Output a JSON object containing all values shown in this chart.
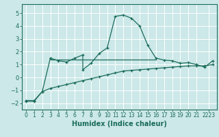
{
  "xlabel": "Humidex (Indice chaleur)",
  "xlim": [
    -0.5,
    23.5
  ],
  "ylim": [
    -2.5,
    5.7
  ],
  "yticks": [
    -2,
    -1,
    0,
    1,
    2,
    3,
    4,
    5
  ],
  "xtick_labels": [
    "0",
    "1",
    "2",
    "3",
    "4",
    "5",
    "6",
    "7",
    "8",
    "9",
    "10",
    "11",
    "12",
    "13",
    "14",
    "15",
    "16",
    "17",
    "18",
    "19",
    "20",
    "21",
    "2223"
  ],
  "xtick_pos": [
    0,
    1,
    2,
    3,
    4,
    5,
    6,
    7,
    8,
    9,
    10,
    11,
    12,
    13,
    14,
    15,
    16,
    17,
    18,
    19,
    20,
    21,
    22.5
  ],
  "bg_color": "#cce8e8",
  "grid_color": "#ffffff",
  "line_color": "#1a6b5a",
  "line1_x": [
    0,
    1,
    2,
    3,
    3,
    4,
    5,
    6,
    7,
    7,
    8,
    9,
    10,
    11,
    12,
    13,
    14,
    15,
    16,
    17,
    18,
    19,
    20,
    21,
    22,
    23
  ],
  "line1_y": [
    -1.8,
    -1.8,
    -1.1,
    1.5,
    1.5,
    1.3,
    1.2,
    1.5,
    1.75,
    0.6,
    1.1,
    1.85,
    2.3,
    4.75,
    4.85,
    4.6,
    4.0,
    2.5,
    1.5,
    1.35,
    1.3,
    1.1,
    1.15,
    1.0,
    0.8,
    1.3
  ],
  "line2_x": [
    0,
    1,
    2,
    3,
    4,
    5,
    6,
    7,
    8,
    9,
    10,
    11,
    12,
    13,
    14,
    15,
    16,
    17,
    18,
    19,
    20,
    21,
    22,
    23
  ],
  "line2_y": [
    -1.85,
    -1.85,
    -1.1,
    -0.85,
    -0.7,
    -0.55,
    -0.4,
    -0.25,
    -0.1,
    0.05,
    0.2,
    0.35,
    0.5,
    0.55,
    0.6,
    0.65,
    0.7,
    0.75,
    0.8,
    0.85,
    0.9,
    0.9,
    0.9,
    1.0
  ],
  "hline_y": 1.4,
  "hline_x_start": 3,
  "hline_x_end": 16
}
